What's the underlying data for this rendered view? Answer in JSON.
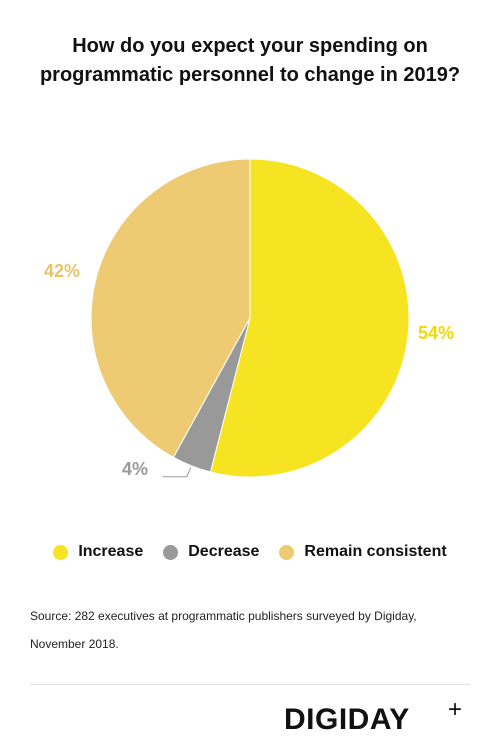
{
  "title_lines": [
    "How do you expect your spending on",
    "programmatic personnel to change in 2019?"
  ],
  "chart_data": {
    "type": "pie",
    "title": "How do you expect your spending on programmatic personnel to change in 2019?",
    "categories": [
      "Increase",
      "Decrease",
      "Remain consistent"
    ],
    "values": [
      54,
      4,
      42
    ],
    "labels": [
      "54%",
      "4%",
      "42%"
    ],
    "colors": [
      "#f6e422",
      "#999999",
      "#eecb72"
    ],
    "label_colors": [
      "#f0d800",
      "#9a9a9a",
      "#e8c468"
    ],
    "legend_position": "bottom"
  },
  "legend": [
    {
      "label": "Increase",
      "color": "#f6e422"
    },
    {
      "label": "Decrease",
      "color": "#999999"
    },
    {
      "label": "Remain consistent",
      "color": "#eecb72"
    }
  ],
  "source_lines": [
    "Source: 282 executives at programmatic publishers surveyed by Digiday,",
    "November 2018."
  ],
  "logo": {
    "text": "DIGIDAY",
    "plus": "+"
  }
}
